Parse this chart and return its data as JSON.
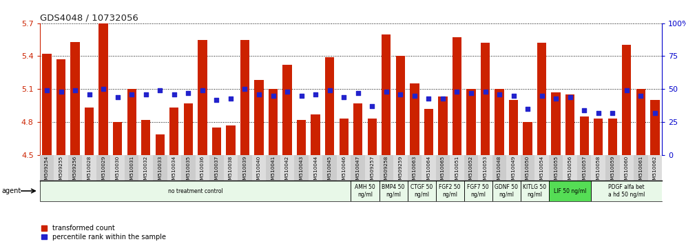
{
  "title": "GDS4048 / 10732056",
  "ylim_left": [
    4.5,
    5.7
  ],
  "ylim_right": [
    0,
    100
  ],
  "yticks_left": [
    4.5,
    4.8,
    5.1,
    5.4,
    5.7
  ],
  "yticks_right": [
    0,
    25,
    50,
    75,
    100
  ],
  "bar_color": "#cc2200",
  "dot_color": "#2222cc",
  "samples": [
    "GSM509254",
    "GSM509255",
    "GSM509256",
    "GSM510028",
    "GSM510029",
    "GSM510030",
    "GSM510031",
    "GSM510032",
    "GSM510033",
    "GSM510034",
    "GSM510035",
    "GSM510036",
    "GSM510037",
    "GSM510038",
    "GSM510039",
    "GSM510040",
    "GSM510041",
    "GSM510042",
    "GSM510043",
    "GSM510044",
    "GSM510045",
    "GSM510046",
    "GSM510047",
    "GSM509257",
    "GSM509258",
    "GSM509259",
    "GSM510063",
    "GSM510064",
    "GSM510065",
    "GSM510051",
    "GSM510052",
    "GSM510053",
    "GSM510048",
    "GSM510049",
    "GSM510050",
    "GSM510054",
    "GSM510055",
    "GSM510056",
    "GSM510057",
    "GSM510058",
    "GSM510059",
    "GSM510060",
    "GSM510061",
    "GSM510062"
  ],
  "bar_values": [
    5.42,
    5.37,
    5.53,
    4.93,
    5.7,
    4.8,
    5.1,
    4.82,
    4.69,
    4.93,
    4.97,
    5.55,
    4.75,
    4.77,
    5.55,
    5.18,
    5.1,
    5.32,
    4.82,
    4.87,
    5.39,
    4.83,
    4.97,
    4.83,
    5.6,
    5.4,
    5.15,
    4.92,
    5.03,
    5.57,
    5.1,
    5.52,
    5.1,
    5.0,
    4.8,
    5.52,
    5.07,
    5.05,
    4.85,
    4.83,
    4.83,
    5.5,
    5.1,
    5.0
  ],
  "percentile_values": [
    49,
    48,
    49,
    46,
    50,
    44,
    46,
    46,
    49,
    46,
    47,
    49,
    42,
    43,
    50,
    46,
    45,
    48,
    45,
    46,
    49,
    44,
    47,
    37,
    48,
    46,
    45,
    43,
    43,
    48,
    47,
    48,
    46,
    45,
    35,
    45,
    43,
    44,
    34,
    32,
    32,
    49,
    45,
    32
  ],
  "agent_groups": [
    {
      "label": "no treatment control",
      "start": 0,
      "end": 22,
      "color": "#e8f8e8"
    },
    {
      "label": "AMH 50\nng/ml",
      "start": 22,
      "end": 24,
      "color": "#e8f8e8"
    },
    {
      "label": "BMP4 50\nng/ml",
      "start": 24,
      "end": 26,
      "color": "#e8f8e8"
    },
    {
      "label": "CTGF 50\nng/ml",
      "start": 26,
      "end": 28,
      "color": "#e8f8e8"
    },
    {
      "label": "FGF2 50\nng/ml",
      "start": 28,
      "end": 30,
      "color": "#e8f8e8"
    },
    {
      "label": "FGF7 50\nng/ml",
      "start": 30,
      "end": 32,
      "color": "#e8f8e8"
    },
    {
      "label": "GDNF 50\nng/ml",
      "start": 32,
      "end": 34,
      "color": "#e8f8e8"
    },
    {
      "label": "KITLG 50\nng/ml",
      "start": 34,
      "end": 36,
      "color": "#e8f8e8"
    },
    {
      "label": "LIF 50 ng/ml",
      "start": 36,
      "end": 39,
      "color": "#55dd55"
    },
    {
      "label": "PDGF alfa bet\na hd 50 ng/ml",
      "start": 39,
      "end": 44,
      "color": "#e8f8e8"
    }
  ],
  "xlabel_agent": "agent",
  "legend_bar": "transformed count",
  "legend_dot": "percentile rank within the sample",
  "bg_color": "#ffffff",
  "plot_bg": "#ffffff",
  "title_color": "#222222",
  "left_axis_color": "#cc2200",
  "right_axis_color": "#0000cc",
  "label_bg_even": "#cccccc",
  "label_bg_odd": "#dddddd"
}
